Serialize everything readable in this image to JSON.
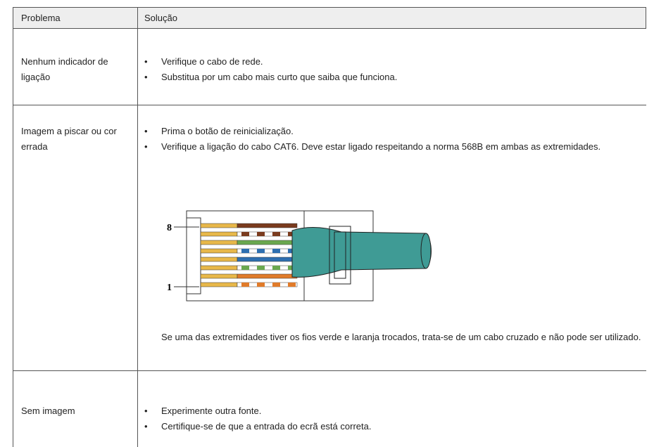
{
  "table": {
    "header": [
      "Problema",
      "Solução"
    ],
    "rows": [
      {
        "problem": "Nenhum indicador de ligação",
        "bullets": [
          "Verifique o cabo de rede.",
          "Substitua por um cabo mais curto que saiba que funciona."
        ]
      },
      {
        "problem": "Imagem a piscar ou cor errada",
        "bullets": [
          "Prima o botão de reinicialização.",
          "Verifique a ligação do cabo CAT6. Deve estar ligado respeitando a norma 568B em ambas as extremidades."
        ],
        "figure_labels": [
          "8",
          "1"
        ],
        "note": "Se uma das extremidades tiver os fios verde e laranja trocados, trata-se de um cabo cruzado e não pode ser utilizado."
      },
      {
        "problem": "Sem imagem",
        "bullets": [
          "Experimente outra fonte.",
          "Certifique-se de que a entrada do ecrã está correta."
        ]
      }
    ]
  }
}
